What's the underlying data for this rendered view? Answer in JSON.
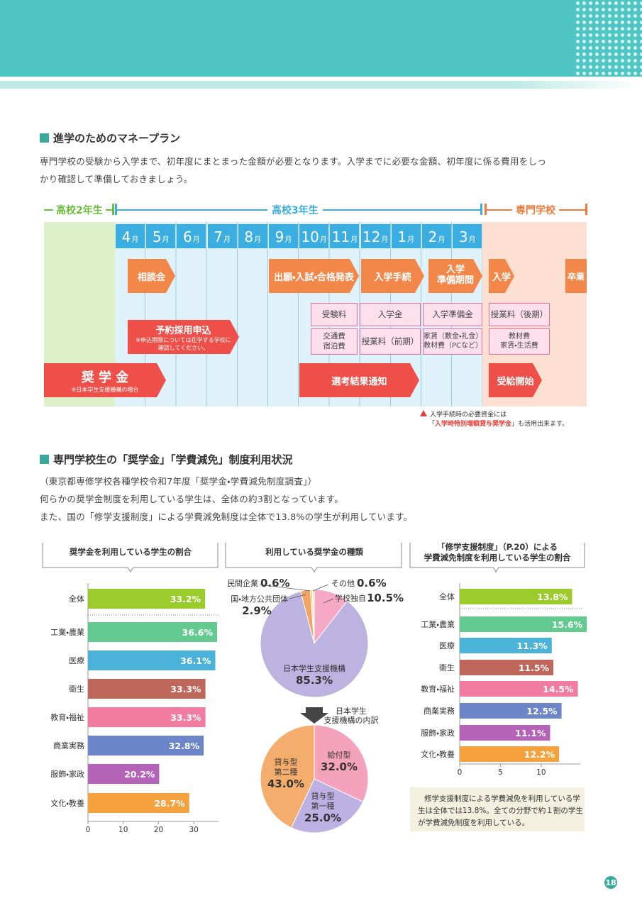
{
  "money_plan": {
    "title": "進学のためのマネープラン",
    "lines": [
      "専門学校の受験から入学まで、初年度にまとまった金額が必要となります。入学までに必要な金額、初年度に係る費用をしっ",
      "かり確認して準備しておきましょう。"
    ]
  },
  "timeline": {
    "phases": [
      "高校2年生",
      "高校3年生",
      "専門学校"
    ],
    "months": [
      "4",
      "5",
      "6",
      "7",
      "8",
      "9",
      "10",
      "11",
      "12",
      "1",
      "2",
      "3"
    ],
    "month_unit": "月",
    "events": {
      "consult": "相談会",
      "exam": "出願・入試・合格発表",
      "procedure": "入学手続",
      "prep": [
        "入学",
        "準備期間"
      ],
      "entrance": "入学",
      "graduation": "卒業",
      "reservation": "予約採用申込",
      "reservation_note": [
        "※申込期限については在学する学校に",
        "確認してください。"
      ],
      "scholarship": "奨 学 金",
      "scholarship_note": "※日本学生支援機構の場合",
      "result": "選考結果通知",
      "payment": "受給開始"
    },
    "costs": {
      "exam_fee": "受験料",
      "admission_fee": "入学金",
      "prep_fund": "入学準備金",
      "tuition_late": "授業料（後期）",
      "travel": [
        "交通費",
        "宿泊費"
      ],
      "tuition_early": "授業料（前期）",
      "rent": [
        "家賃（敷金・礼金）",
        "教材費（PCなど）"
      ],
      "materials": [
        "教材費",
        "家賃・生活費"
      ]
    },
    "note": {
      "line1": "入学手続時の必要資金には",
      "open": "「",
      "highlight": "入学時特別増額貸与奨学金",
      "close": "」",
      "tail": "も活用出来ます。"
    }
  },
  "usage": {
    "title": "専門学校生の「奨学金」「学費減免」制度利用状況",
    "lines": [
      "（東京都専修学校各種学校令和7年度「奨学金・学費減免制度調査」）",
      "何らかの奨学金制度を利用している学生は、全体の約3割となっています。",
      "また、国の「修学支援制度」による学費減免制度は全体で13.8%の学生が利用しています。"
    ]
  },
  "chart_data": [
    {
      "type": "hbar",
      "title": [
        "奨学金を利用している学生の割合"
      ],
      "categories": [
        "全体",
        "工業・農業",
        "医療",
        "衛生",
        "教育・福祉",
        "商業実務",
        "服飾・家政",
        "文化・教養"
      ],
      "values": [
        33.2,
        36.6,
        36.1,
        33.3,
        33.3,
        32.8,
        20.2,
        28.7
      ],
      "value_labels": [
        "33.2%",
        "36.6%",
        "36.1%",
        "33.3%",
        "33.3%",
        "32.8%",
        "20.2%",
        "28.7%"
      ],
      "colors": [
        "#9ccc2c",
        "#62c98f",
        "#4bb3da",
        "#c0675b",
        "#f27ba2",
        "#6c86c9",
        "#b562b9",
        "#f5a13d"
      ],
      "xlim": [
        0,
        37
      ],
      "xticks": [
        0,
        10,
        20,
        30
      ]
    },
    {
      "type": "pie",
      "title": [
        "利用している奨学金の種類"
      ],
      "categories": [
        [
          "学校独自"
        ],
        [
          "日本学生支援機構"
        ],
        [
          "国・地方公共団体"
        ],
        [
          "民間企業"
        ],
        [
          "その他"
        ]
      ],
      "values": [
        10.5,
        85.3,
        2.9,
        0.6,
        0.6
      ],
      "value_labels": [
        "10.5%",
        "85.3%",
        "2.9%",
        "0.6%",
        "0.6%"
      ],
      "colors": [
        "#f5a9c4",
        "#bdb3e0",
        "#f2a463",
        "#f8c98a",
        "#fbeaa8"
      ]
    },
    {
      "type": "pie",
      "caption": [
        "日本学生",
        "支援機構の内訳"
      ],
      "categories": [
        [
          "給付型"
        ],
        [
          "貸与型",
          "第一種"
        ],
        [
          "貸与型",
          "第二種"
        ]
      ],
      "values": [
        32.0,
        25.0,
        43.0
      ],
      "value_labels": [
        "32.0%",
        "25.0%",
        "43.0%"
      ],
      "colors": [
        "#f5a3bd",
        "#bcb1e2",
        "#f4ad6d"
      ]
    },
    {
      "type": "hbar",
      "title": [
        "「修学支援制度」（P.20）による",
        "学費減免制度を利用している学生の割合"
      ],
      "categories": [
        "全体",
        "工業・農業",
        "医療",
        "衛生",
        "教育・福祉",
        "商業実務",
        "服飾・家政",
        "文化・教養"
      ],
      "values": [
        13.8,
        15.6,
        11.3,
        11.5,
        14.5,
        12.5,
        11.1,
        12.2
      ],
      "value_labels": [
        "13.8%",
        "15.6%",
        "11.3%",
        "11.5%",
        "14.5%",
        "12.5%",
        "11.1%",
        "12.2%"
      ],
      "colors": [
        "#9ccc2c",
        "#62c98f",
        "#4bb3da",
        "#c0675b",
        "#f27ba2",
        "#6c86c9",
        "#b562b9",
        "#f5a13d"
      ],
      "xlim": [
        0,
        14.8
      ],
      "xticks": [
        0,
        5,
        10
      ],
      "note": [
        "修学支援制度による学費減免を利用している学",
        "生は全体では13.8%。全ての分野で約１割の学生",
        "が学費減免制度を利用している。"
      ]
    }
  ],
  "page_number": "18"
}
